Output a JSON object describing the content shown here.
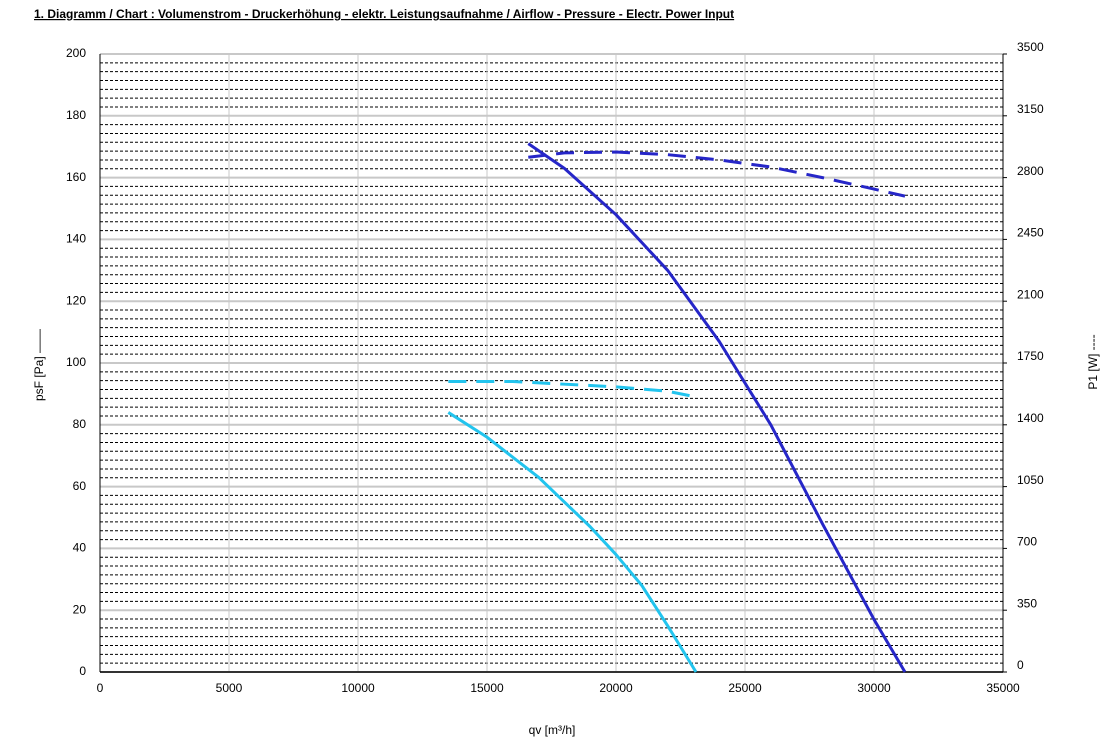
{
  "chart_data": {
    "type": "line",
    "title": "1. Diagramm / Chart :   Volumenstrom - Druckerhöhung - elektr. Leistungsaufnahme / Airflow - Pressure - Electr. Power Input",
    "xlabel": "qv [m³/h]",
    "ylabel": "psF [Pa] ——",
    "y2label": "P1 [W] ----",
    "xlim": [
      0,
      35000
    ],
    "xticks": [
      0,
      5000,
      10000,
      15000,
      20000,
      25000,
      30000,
      35000
    ],
    "ylim": [
      0,
      200
    ],
    "yticks": [
      0,
      20,
      40,
      60,
      80,
      100,
      120,
      140,
      160,
      180,
      200
    ],
    "y2lim": [
      0,
      3500
    ],
    "y2ticks": [
      0,
      350,
      700,
      1050,
      1400,
      1750,
      2100,
      2450,
      2800,
      3150,
      3500
    ],
    "y2minorticks": [
      50,
      100,
      150,
      200,
      250,
      300,
      400,
      450,
      500,
      550,
      600,
      650,
      750,
      800,
      850,
      900,
      950,
      1000,
      1100,
      1150,
      1200,
      1250,
      1300,
      1350,
      1450,
      1500,
      1550,
      1600,
      1650,
      1700,
      1800,
      1850,
      1900,
      1950,
      2000,
      2050,
      2150,
      2200,
      2250,
      2300,
      2350,
      2400,
      2500,
      2550,
      2600,
      2650,
      2700,
      2750,
      2850,
      2900,
      2950,
      3000,
      3050,
      3100,
      3200,
      3250,
      3300,
      3350,
      3400,
      3450
    ],
    "grid": true,
    "series": [
      {
        "color": "#2626c8",
        "style": "solid",
        "axis": "y",
        "x": [
          16600,
          18000,
          20000,
          22000,
          24000,
          26000,
          28000,
          30000,
          31200
        ],
        "values": [
          171,
          163,
          148,
          130,
          107,
          80,
          48,
          17,
          0
        ]
      },
      {
        "color": "#2626c8",
        "style": "dashed",
        "axis": "y2",
        "x": [
          16600,
          18000,
          20000,
          22000,
          24000,
          26000,
          28000,
          30000,
          31200
        ],
        "values": [
          2915,
          2940,
          2945,
          2930,
          2900,
          2860,
          2800,
          2735,
          2695
        ]
      },
      {
        "color": "#22c4ee",
        "style": "solid",
        "axis": "y",
        "x": [
          13500,
          15000,
          17000,
          19000,
          20000,
          21000,
          22000,
          23100
        ],
        "values": [
          84,
          76,
          63,
          47,
          38,
          28,
          15,
          0
        ]
      },
      {
        "color": "#22c4ee",
        "style": "dashed",
        "axis": "y2",
        "x": [
          13500,
          16000,
          18000,
          20000,
          22000,
          23200
        ],
        "values": [
          1645,
          1645,
          1630,
          1615,
          1590,
          1555
        ]
      }
    ]
  }
}
